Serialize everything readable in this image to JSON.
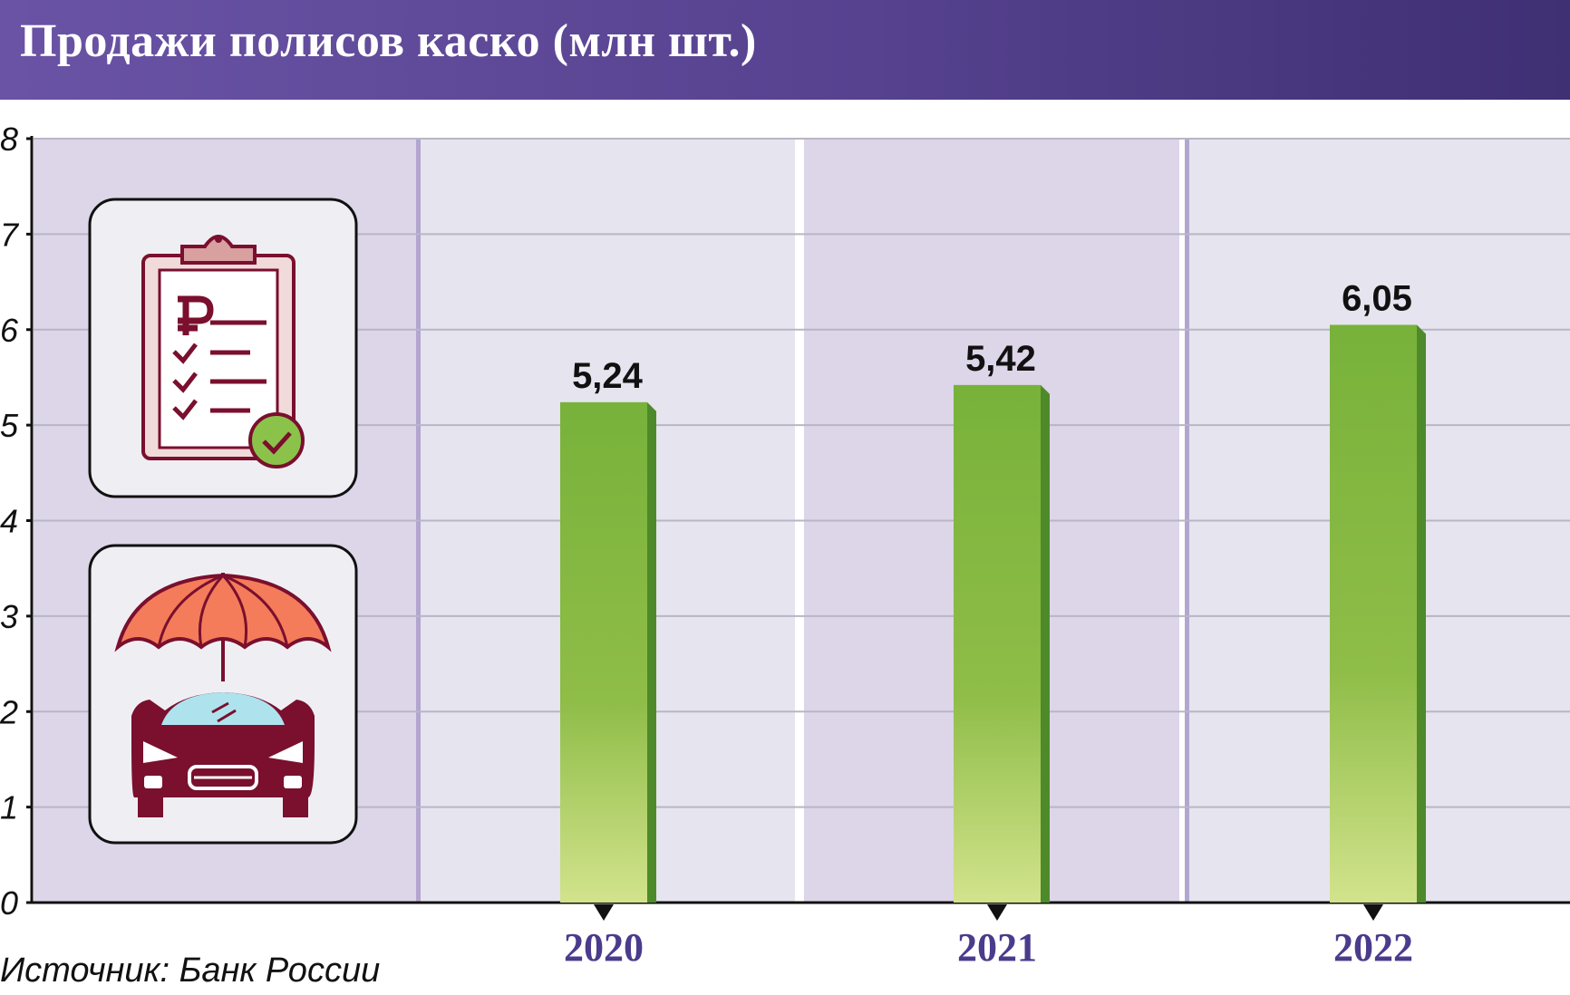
{
  "header": {
    "title": "Продажи полисов каско (млн шт.)"
  },
  "source": "Источник: Банк России",
  "colors": {
    "header_bg": "#56428f",
    "bar": "#7bb53f",
    "bar_light": "#d2e38c",
    "bar_side": "#4e8a2a",
    "year_label": "#4b3b8c",
    "panel_a": "#ddd5e8",
    "panel_b": "#e6e4ee"
  },
  "icons": [
    "clipboard-ruble-checklist-icon",
    "umbrella-car-icon"
  ],
  "chart_data": {
    "type": "bar",
    "categories": [
      "2020",
      "2021",
      "2022"
    ],
    "values": [
      5.24,
      5.42,
      6.05
    ],
    "value_labels": [
      "5,24",
      "5,42",
      "6,05"
    ],
    "y_ticks": [
      "0",
      "1",
      "2",
      "3",
      "4",
      "5",
      "6",
      "7",
      "8"
    ],
    "ylim": [
      0,
      8
    ],
    "grid": true,
    "legend": "none"
  }
}
